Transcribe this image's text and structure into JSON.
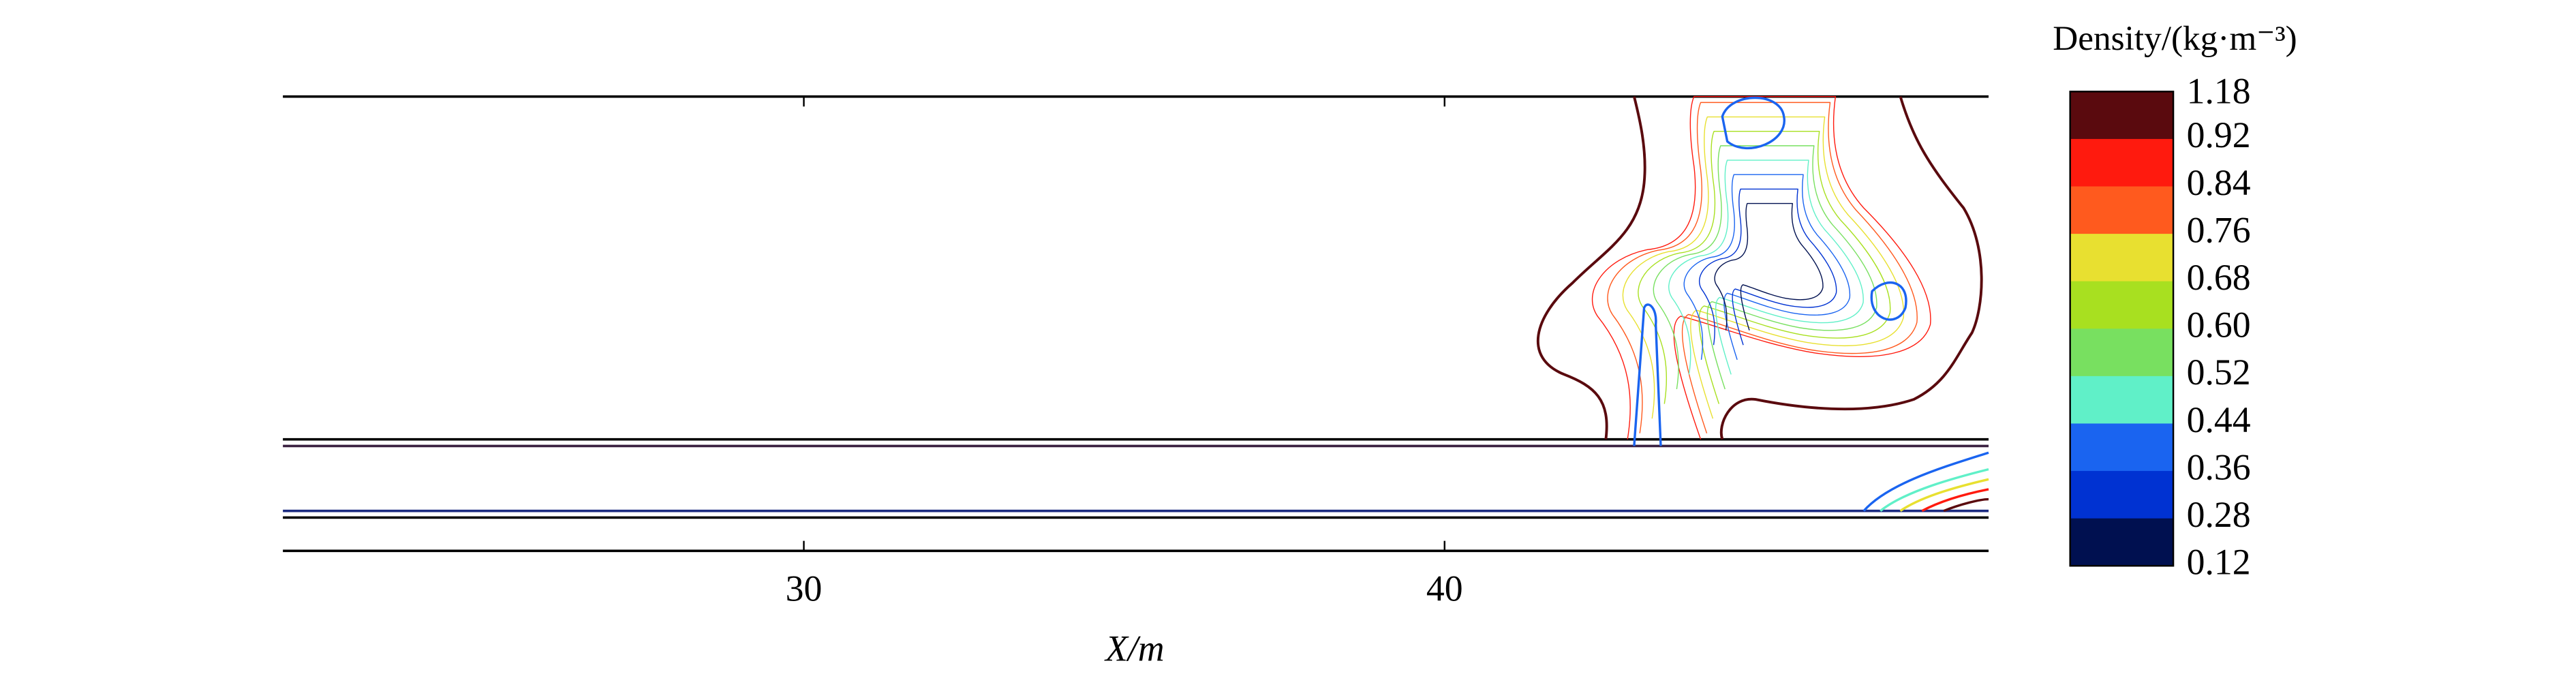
{
  "chart_data": {
    "type": "contour",
    "x_label": "X/m",
    "xlim": [
      21.87,
      48.49
    ],
    "xticks": [
      30,
      40
    ],
    "colorbar": {
      "label": "Density/(kg·m⁻³)",
      "ticks": [
        1.18,
        0.92,
        0.84,
        0.76,
        0.68,
        {
          "value": 0.6,
          "label": "0.60"
        },
        0.52,
        0.44,
        0.36,
        0.28,
        0.12
      ],
      "colors": [
        "#5a0a0e",
        "#ff1a0e",
        "#ff5a1e",
        "#e8e030",
        "#a8e020",
        "#78e060",
        "#60f0c8",
        "#1a64f0",
        "#0032d2",
        "#001050"
      ]
    }
  }
}
